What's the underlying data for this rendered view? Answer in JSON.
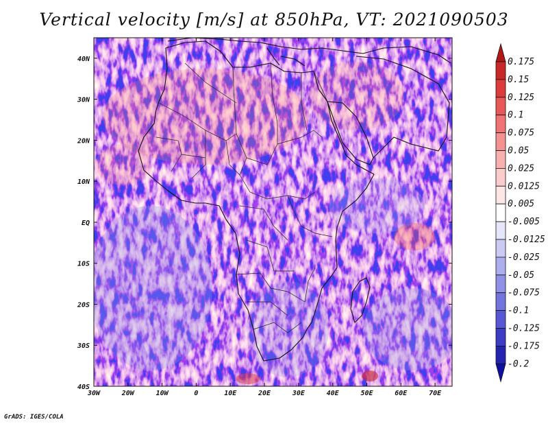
{
  "title": "Vertical velocity [m/s] at 850hPa, VT: 2021090503",
  "footer": "GrADS: IGES/COLA",
  "chart_data": {
    "type": "heatmap",
    "variable": "Vertical velocity",
    "units": "m/s",
    "level": "850hPa",
    "valid_time": "2021090503",
    "lon_range": [
      -30,
      75
    ],
    "lat_range": [
      -40,
      45
    ],
    "x_ticks": [
      {
        "value": -30,
        "label": "30W"
      },
      {
        "value": -20,
        "label": "20W"
      },
      {
        "value": -10,
        "label": "10W"
      },
      {
        "value": 0,
        "label": "0"
      },
      {
        "value": 10,
        "label": "10E"
      },
      {
        "value": 20,
        "label": "20E"
      },
      {
        "value": 30,
        "label": "30E"
      },
      {
        "value": 40,
        "label": "40E"
      },
      {
        "value": 50,
        "label": "50E"
      },
      {
        "value": 60,
        "label": "60E"
      },
      {
        "value": 70,
        "label": "70E"
      }
    ],
    "y_ticks": [
      {
        "value": 40,
        "label": "40N"
      },
      {
        "value": 30,
        "label": "30N"
      },
      {
        "value": 20,
        "label": "20N"
      },
      {
        "value": 10,
        "label": "10N"
      },
      {
        "value": 0,
        "label": "EQ"
      },
      {
        "value": -10,
        "label": "10S"
      },
      {
        "value": -20,
        "label": "20S"
      },
      {
        "value": -30,
        "label": "30S"
      },
      {
        "value": -40,
        "label": "40S"
      }
    ],
    "colorbar": {
      "labels": [
        "0.175",
        "0.15",
        "0.125",
        "0.1",
        "0.075",
        "0.05",
        "0.025",
        "0.0125",
        "0.005",
        "-0.005",
        "-0.0125",
        "-0.025",
        "-0.05",
        "-0.075",
        "-0.1",
        "-0.125",
        "-0.175",
        "-0.2"
      ],
      "colors": [
        "#b01818",
        "#c82828",
        "#dc3c3c",
        "#e85858",
        "#f07474",
        "#f49292",
        "#f8b0b0",
        "#fbcccc",
        "#fde6e6",
        "#ffffff",
        "#e6e6fb",
        "#cacaf4",
        "#aeaeee",
        "#9090e6",
        "#7474de",
        "#5858d4",
        "#3c3cc4",
        "#2424b0",
        "#1010a0"
      ]
    }
  }
}
